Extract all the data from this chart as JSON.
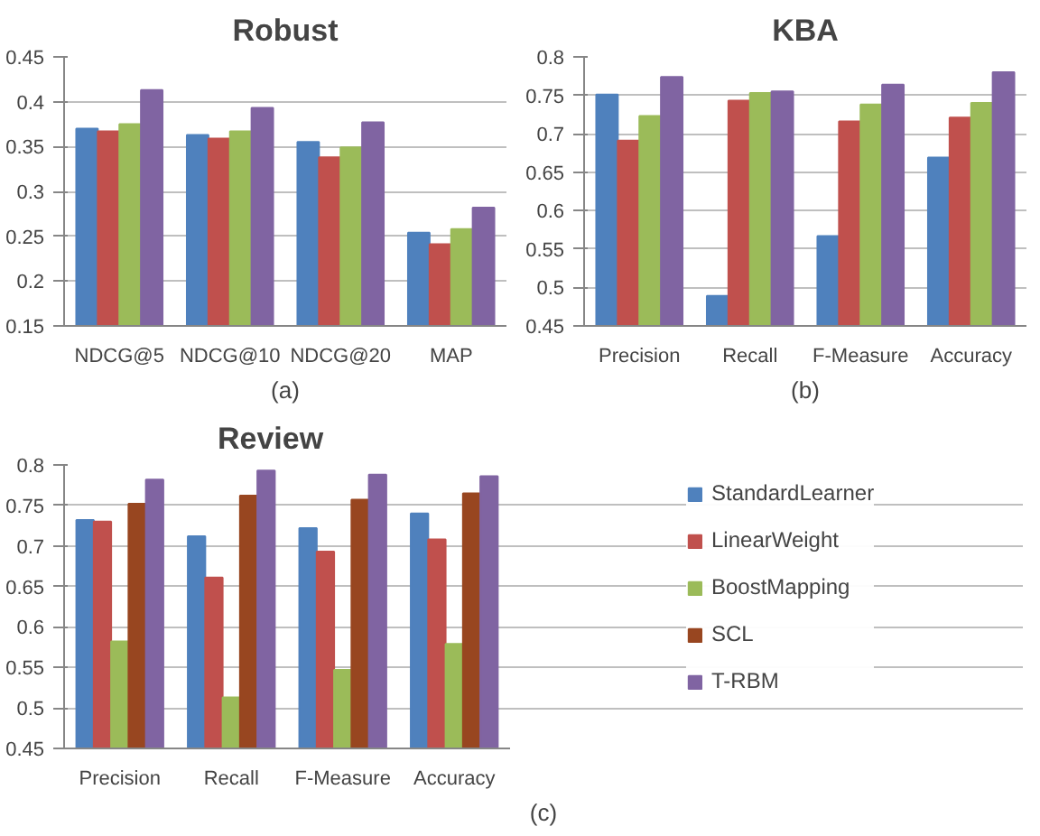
{
  "chart_data": [
    {
      "type": "bar",
      "title": "Robust",
      "xlabel": "(a)",
      "categories": [
        "NDCG@5",
        "NDCG@10",
        "NDCG@20",
        "MAP"
      ],
      "ylim": [
        0.15,
        0.45
      ],
      "yticks": [
        0.15,
        0.2,
        0.25,
        0.3,
        0.35,
        0.4,
        0.45
      ],
      "grid": "y",
      "series": [
        {
          "color": "#4f81bd",
          "values": [
            0.37,
            0.363,
            0.355,
            0.254
          ]
        },
        {
          "color": "#c0504d",
          "values": [
            0.367,
            0.359,
            0.338,
            0.241
          ]
        },
        {
          "color": "#9bbb59",
          "values": [
            0.375,
            0.367,
            0.349,
            0.258
          ]
        },
        {
          "color": "#8064a2",
          "values": [
            0.413,
            0.393,
            0.377,
            0.282
          ]
        }
      ]
    },
    {
      "type": "bar",
      "title": "KBA",
      "xlabel": "(b)",
      "categories": [
        "Precision",
        "Recall",
        "F-Measure",
        "Accuracy"
      ],
      "ylim": [
        0.45,
        0.8
      ],
      "yticks": [
        0.45,
        0.5,
        0.55,
        0.6,
        0.65,
        0.7,
        0.75,
        0.8
      ],
      "grid": "y",
      "series": [
        {
          "color": "#4f81bd",
          "values": [
            0.751,
            0.489,
            0.567,
            0.669
          ]
        },
        {
          "color": "#c0504d",
          "values": [
            0.691,
            0.743,
            0.716,
            0.721
          ]
        },
        {
          "color": "#9bbb59",
          "values": [
            0.723,
            0.753,
            0.738,
            0.74
          ]
        },
        {
          "color": "#8064a2",
          "values": [
            0.774,
            0.755,
            0.764,
            0.78
          ]
        }
      ]
    },
    {
      "type": "bar",
      "title": "Review",
      "xlabel": "(c)",
      "categories": [
        "Precision",
        "Recall",
        "F-Measure",
        "Accuracy"
      ],
      "ylim": [
        0.45,
        0.8
      ],
      "yticks": [
        0.45,
        0.5,
        0.55,
        0.6,
        0.65,
        0.7,
        0.75,
        0.8
      ],
      "grid": "y",
      "legend": "right",
      "series": [
        {
          "name": "StandardLearner",
          "color": "#4f81bd",
          "values": [
            0.732,
            0.712,
            0.722,
            0.74
          ]
        },
        {
          "name": "LinearWeight",
          "color": "#c0504d",
          "values": [
            0.73,
            0.661,
            0.693,
            0.708
          ]
        },
        {
          "name": "BoostMapping",
          "color": "#9bbb59",
          "values": [
            0.582,
            0.513,
            0.547,
            0.579
          ]
        },
        {
          "name": "SCL",
          "color": "#984620",
          "values": [
            0.752,
            0.762,
            0.757,
            0.765
          ]
        },
        {
          "name": "T-RBM",
          "color": "#8064a2",
          "values": [
            0.782,
            0.793,
            0.788,
            0.786
          ]
        }
      ]
    }
  ]
}
